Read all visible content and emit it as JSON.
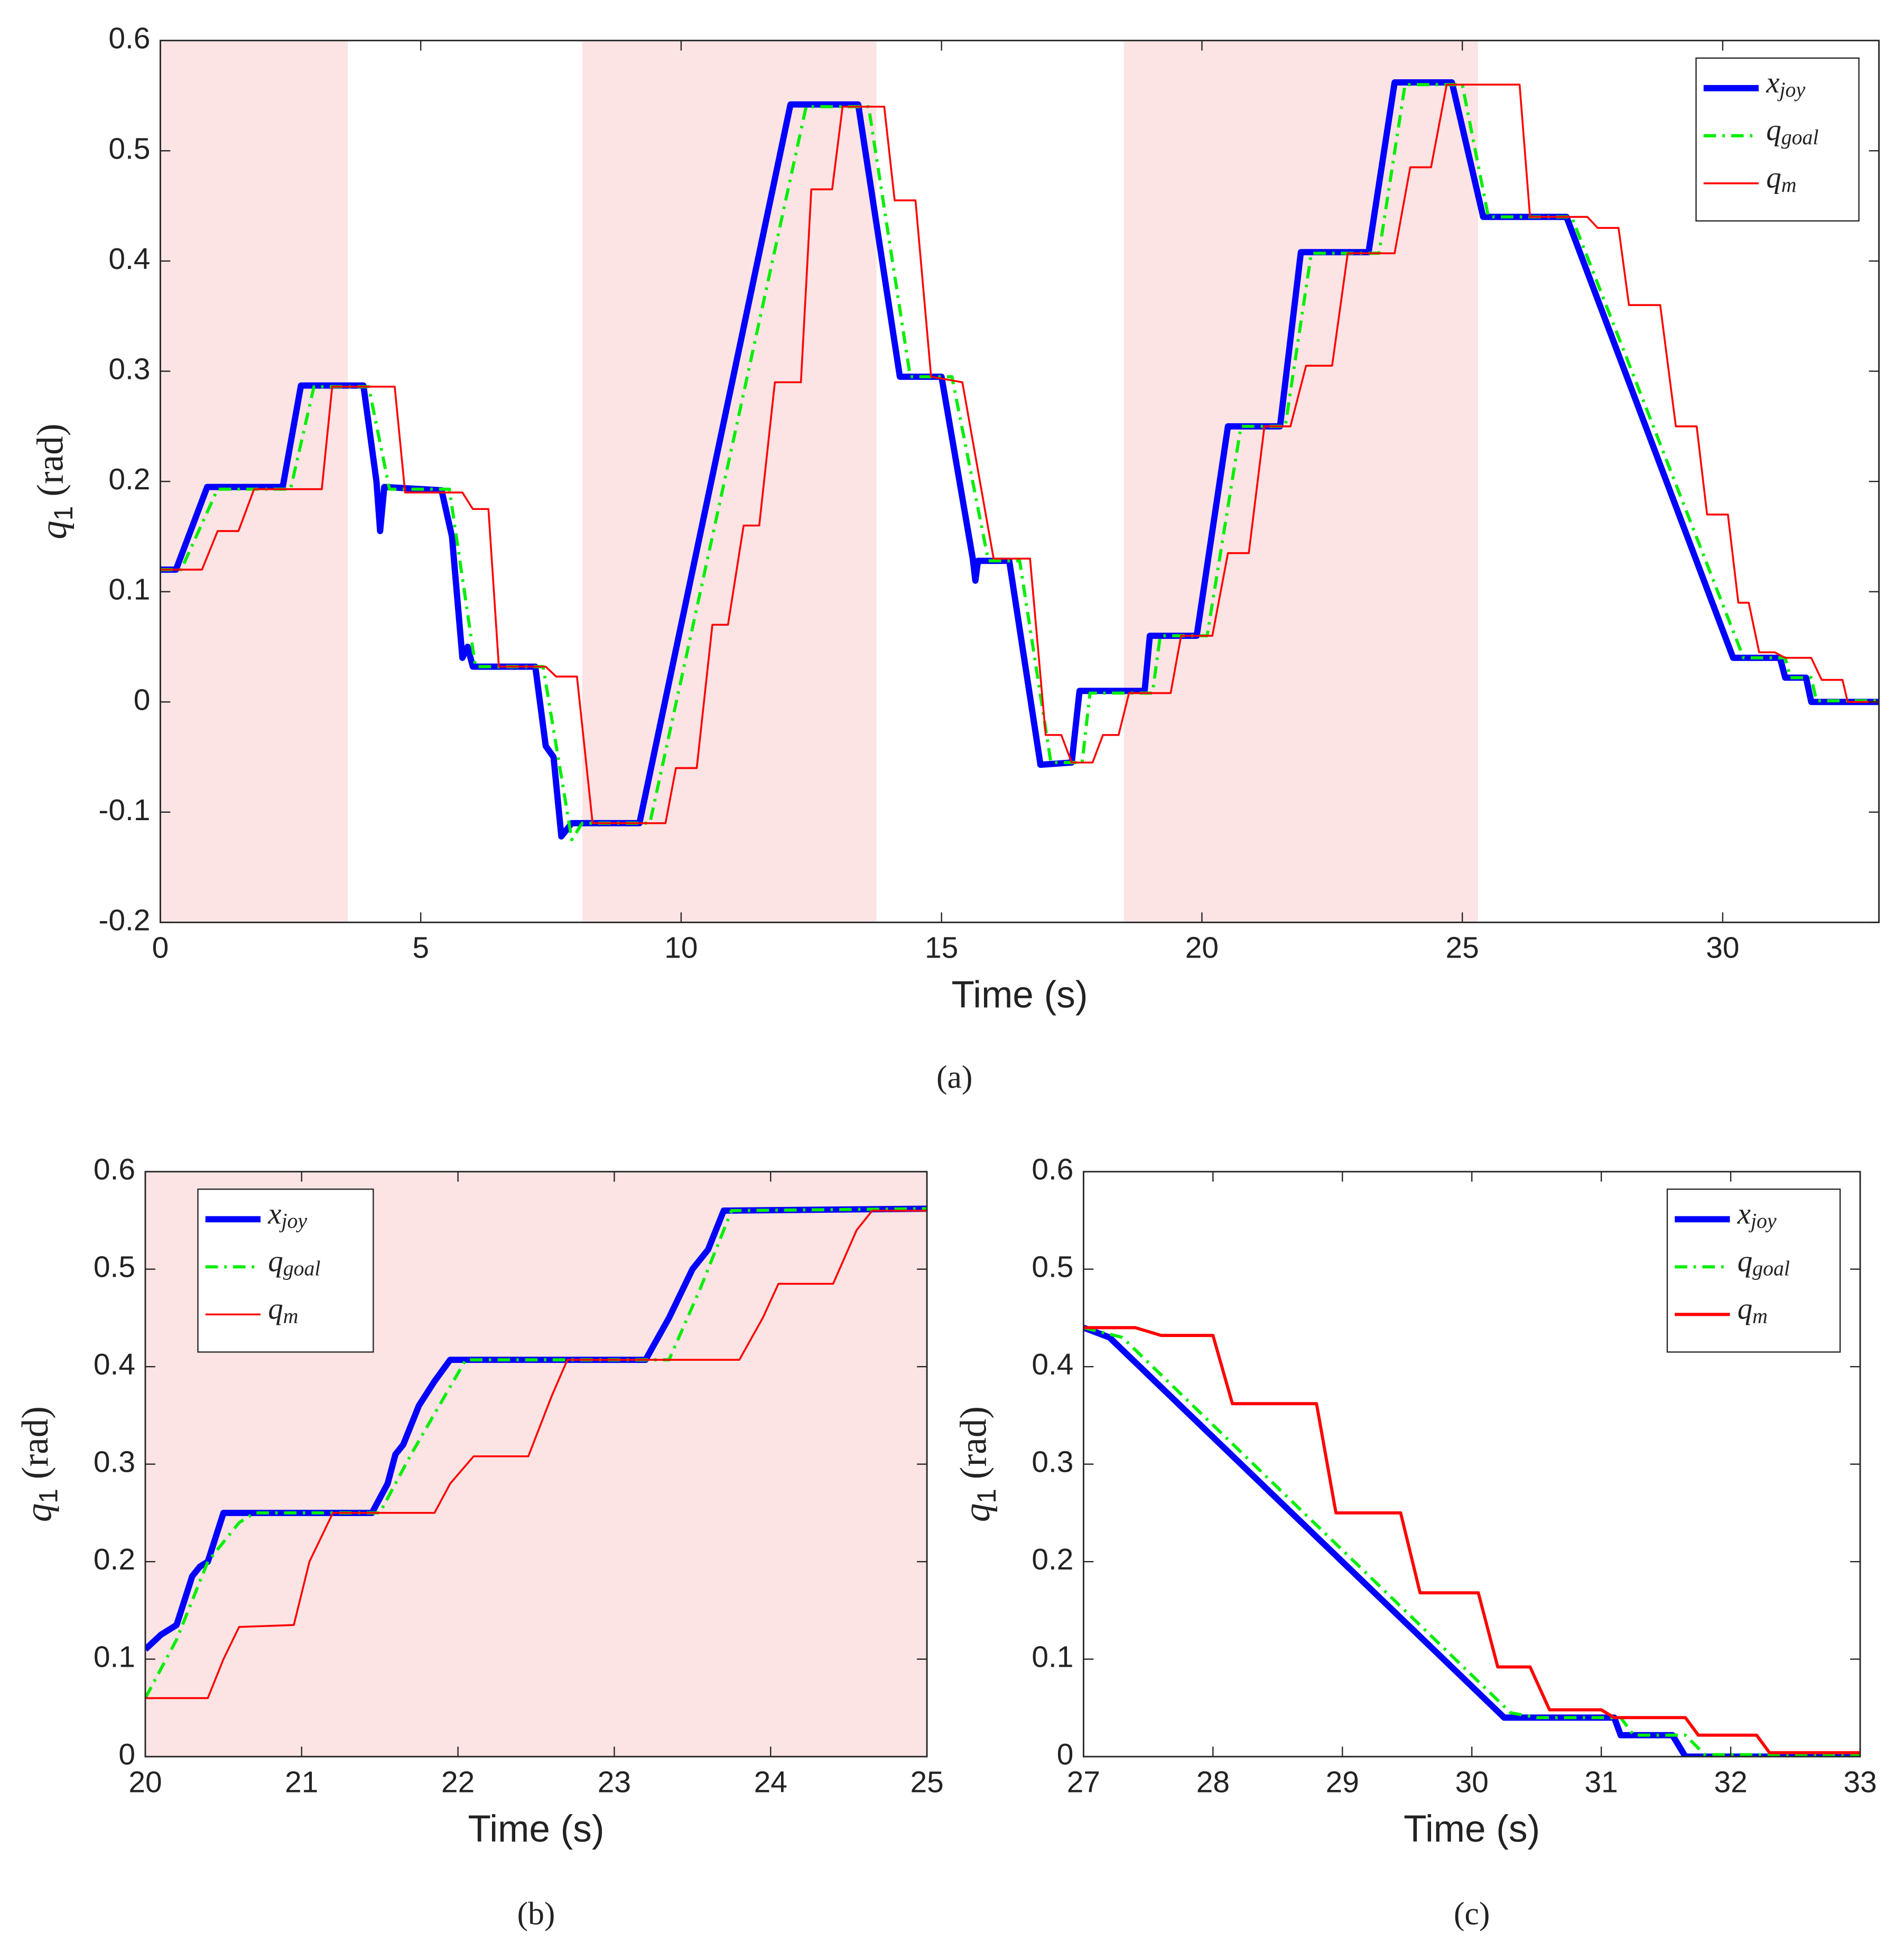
{
  "chart_data": [
    {
      "type": "line",
      "caption": "(a)",
      "xlabel": "Time (s)",
      "ylabel": "q_1 (rad)",
      "xlim": [
        0,
        33
      ],
      "xticks": [
        0,
        5,
        10,
        15,
        20,
        25,
        30
      ],
      "ylim": [
        -0.2,
        0.6
      ],
      "yticks": [
        -0.2,
        -0.1,
        0,
        0.1,
        0.2,
        0.3,
        0.4,
        0.5,
        0.6
      ],
      "shaded_regions": [
        [
          0,
          3.6
        ],
        [
          8.1,
          13.75
        ],
        [
          18.5,
          25.3
        ]
      ],
      "shade_color": "#fce4e4",
      "legend": "upper right",
      "series": [
        {
          "name": "x_joy",
          "color": "#0000ff",
          "linewidth": 5,
          "dash": "solid",
          "x": [
            0,
            0.3,
            0.9,
            2.35,
            2.7,
            3.9,
            4.15,
            4.22,
            4.3,
            5.4,
            5.6,
            5.8,
            5.9,
            6.0,
            7.2,
            7.4,
            7.55,
            7.7,
            7.9,
            9.2,
            12.1,
            13.4,
            14.2,
            15.0,
            15.6,
            15.65,
            15.7,
            16.3,
            16.9,
            17.5,
            17.65,
            18.9,
            19.0,
            19.9,
            20.5,
            21.5,
            21.9,
            23.2,
            23.7,
            24.8,
            25.4,
            27.0,
            30.2,
            31.1,
            31.2,
            31.6,
            31.7,
            33
          ],
          "values": [
            0.12,
            0.12,
            0.195,
            0.195,
            0.287,
            0.287,
            0.2,
            0.155,
            0.195,
            0.192,
            0.15,
            0.04,
            0.05,
            0.032,
            0.032,
            -0.04,
            -0.05,
            -0.122,
            -0.11,
            -0.11,
            0.542,
            0.542,
            0.295,
            0.295,
            0.13,
            0.11,
            0.128,
            0.128,
            -0.057,
            -0.055,
            0.01,
            0.01,
            0.06,
            0.06,
            0.25,
            0.25,
            0.408,
            0.408,
            0.562,
            0.562,
            0.44,
            0.44,
            0.04,
            0.04,
            0.022,
            0.022,
            0,
            0
          ]
        },
        {
          "name": "q_goal",
          "color": "#00ee00",
          "linewidth": 2.5,
          "dash": "dashdot",
          "x": [
            0,
            0.4,
            1.1,
            2.5,
            2.95,
            4.0,
            4.4,
            5.55,
            6.05,
            7.35,
            7.9,
            8.1,
            9.4,
            12.4,
            13.6,
            14.4,
            15.2,
            15.9,
            16.5,
            17.1,
            17.7,
            17.85,
            19.05,
            19.2,
            20.1,
            20.75,
            21.6,
            22.1,
            23.4,
            23.9,
            25.0,
            25.5,
            27.1,
            30.4,
            31.2,
            31.3,
            31.7,
            31.8,
            33
          ],
          "values": [
            0.12,
            0.12,
            0.193,
            0.193,
            0.286,
            0.286,
            0.193,
            0.193,
            0.032,
            0.032,
            -0.125,
            -0.11,
            -0.11,
            0.54,
            0.54,
            0.295,
            0.295,
            0.128,
            0.128,
            -0.055,
            -0.055,
            0.008,
            0.008,
            0.06,
            0.06,
            0.25,
            0.25,
            0.407,
            0.407,
            0.56,
            0.56,
            0.44,
            0.44,
            0.04,
            0.04,
            0.022,
            0.022,
            0.001,
            0.001
          ]
        },
        {
          "name": "q_m",
          "color": "#ff0000",
          "linewidth": 1.5,
          "dash": "solid",
          "x": [
            0,
            0.8,
            1.1,
            1.5,
            1.8,
            3.1,
            3.3,
            4.5,
            4.7,
            5.8,
            6.0,
            6.3,
            6.5,
            7.4,
            7.6,
            8.0,
            8.3,
            9.7,
            9.9,
            10.3,
            10.6,
            10.9,
            11.2,
            11.5,
            11.8,
            12.3,
            12.5,
            12.9,
            13.1,
            13.9,
            14.1,
            14.5,
            14.8,
            15.4,
            16.0,
            16.7,
            17.0,
            17.3,
            17.5,
            17.9,
            18.1,
            18.4,
            18.6,
            19.4,
            19.6,
            20.2,
            20.5,
            20.9,
            21.2,
            21.7,
            22.0,
            22.5,
            22.8,
            23.7,
            24.0,
            24.4,
            24.7,
            26.1,
            26.3,
            27.4,
            27.6,
            28.0,
            28.2,
            28.8,
            29.1,
            29.5,
            29.7,
            30.1,
            30.3,
            30.5,
            30.7,
            31.0,
            31.2,
            31.7,
            31.9,
            32.3,
            32.4,
            33
          ],
          "values": [
            0.12,
            0.12,
            0.155,
            0.155,
            0.193,
            0.193,
            0.286,
            0.286,
            0.19,
            0.19,
            0.175,
            0.175,
            0.032,
            0.032,
            0.023,
            0.023,
            -0.11,
            -0.11,
            -0.06,
            -0.06,
            0.07,
            0.07,
            0.16,
            0.16,
            0.29,
            0.29,
            0.465,
            0.465,
            0.54,
            0.54,
            0.455,
            0.455,
            0.295,
            0.29,
            0.13,
            0.13,
            -0.03,
            -0.03,
            -0.055,
            -0.055,
            -0.03,
            -0.03,
            0.008,
            0.008,
            0.06,
            0.06,
            0.135,
            0.135,
            0.25,
            0.25,
            0.305,
            0.305,
            0.407,
            0.407,
            0.485,
            0.485,
            0.56,
            0.56,
            0.44,
            0.44,
            0.43,
            0.43,
            0.36,
            0.36,
            0.25,
            0.25,
            0.17,
            0.17,
            0.09,
            0.09,
            0.045,
            0.045,
            0.04,
            0.04,
            0.02,
            0.02,
            0,
            0
          ]
        }
      ]
    },
    {
      "type": "line",
      "caption": "(b)",
      "xlabel": "Time (s)",
      "ylabel": "q_1 (rad)",
      "xlim": [
        20,
        25
      ],
      "xticks": [
        20,
        21,
        22,
        23,
        24,
        25
      ],
      "ylim": [
        0,
        0.6
      ],
      "yticks": [
        0,
        0.1,
        0.2,
        0.3,
        0.4,
        0.5,
        0.6
      ],
      "shaded_regions": [
        [
          20,
          25
        ]
      ],
      "shade_color": "#fce4e4",
      "legend": "upper left",
      "series": [
        {
          "name": "x_joy",
          "color": "#0000ff",
          "linewidth": 5,
          "dash": "solid",
          "x": [
            20,
            20.1,
            20.2,
            20.3,
            20.35,
            20.4,
            20.5,
            21.45,
            21.55,
            21.6,
            21.65,
            21.75,
            21.85,
            21.95,
            23.2,
            23.35,
            23.5,
            23.6,
            23.7,
            25
          ],
          "values": [
            0.11,
            0.125,
            0.135,
            0.185,
            0.195,
            0.2,
            0.25,
            0.25,
            0.28,
            0.31,
            0.32,
            0.36,
            0.385,
            0.407,
            0.407,
            0.45,
            0.5,
            0.52,
            0.56,
            0.562
          ]
        },
        {
          "name": "q_goal",
          "color": "#00ee00",
          "linewidth": 2.5,
          "dash": "dashdot",
          "x": [
            20,
            20.2,
            20.4,
            20.6,
            20.7,
            21.5,
            21.7,
            22.05,
            23.35,
            23.55,
            23.75,
            25
          ],
          "values": [
            0.06,
            0.12,
            0.2,
            0.24,
            0.25,
            0.25,
            0.31,
            0.407,
            0.407,
            0.48,
            0.56,
            0.562
          ]
        },
        {
          "name": "q_m",
          "color": "#ff0000",
          "linewidth": 1.5,
          "dash": "solid",
          "x": [
            20,
            20.4,
            20.5,
            20.6,
            20.95,
            21.05,
            21.2,
            21.85,
            21.95,
            22.1,
            22.45,
            22.6,
            22.7,
            23.8,
            23.95,
            24.05,
            24.4,
            24.55,
            24.65,
            25
          ],
          "values": [
            0.06,
            0.06,
            0.1,
            0.133,
            0.135,
            0.2,
            0.25,
            0.25,
            0.28,
            0.308,
            0.308,
            0.37,
            0.407,
            0.407,
            0.45,
            0.485,
            0.485,
            0.54,
            0.56,
            0.56
          ]
        }
      ]
    },
    {
      "type": "line",
      "caption": "(c)",
      "xlabel": "Time (s)",
      "ylabel": "q_1 (rad)",
      "xlim": [
        27,
        33
      ],
      "xticks": [
        27,
        28,
        29,
        30,
        31,
        32,
        33
      ],
      "ylim": [
        0,
        0.6
      ],
      "yticks": [
        0,
        0.1,
        0.2,
        0.3,
        0.4,
        0.5,
        0.6
      ],
      "legend": "upper right",
      "series": [
        {
          "name": "x_joy",
          "color": "#0000ff",
          "linewidth": 5,
          "dash": "solid",
          "x": [
            27,
            27.2,
            30.25,
            31.1,
            31.15,
            31.55,
            31.65,
            33
          ],
          "values": [
            0.44,
            0.43,
            0.04,
            0.04,
            0.022,
            0.022,
            0,
            0
          ]
        },
        {
          "name": "q_goal",
          "color": "#00ee00",
          "linewidth": 2.5,
          "dash": "dashdot",
          "x": [
            27,
            27.3,
            30.3,
            30.5,
            31.15,
            31.25,
            31.65,
            31.8,
            33
          ],
          "values": [
            0.44,
            0.43,
            0.045,
            0.04,
            0.04,
            0.022,
            0.022,
            0.002,
            0.002
          ]
        },
        {
          "name": "q_m",
          "color": "#ff0000",
          "linewidth": 2.5,
          "dash": "solid",
          "x": [
            27,
            27.4,
            27.6,
            28,
            28.15,
            28.8,
            28.95,
            29.45,
            29.6,
            30.05,
            30.2,
            30.45,
            30.6,
            31,
            31.1,
            31.65,
            31.75,
            32.2,
            32.3,
            33
          ],
          "values": [
            0.44,
            0.44,
            0.432,
            0.432,
            0.362,
            0.362,
            0.25,
            0.25,
            0.168,
            0.168,
            0.092,
            0.092,
            0.048,
            0.048,
            0.04,
            0.04,
            0.022,
            0.022,
            0.004,
            0.004
          ]
        }
      ]
    }
  ]
}
